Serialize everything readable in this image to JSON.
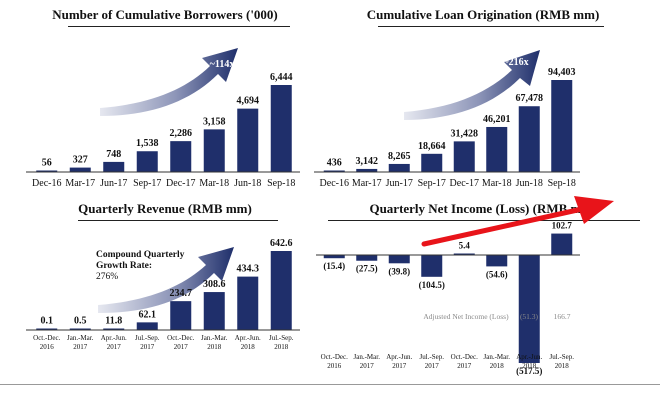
{
  "colors": {
    "bar": "#1f2f6b",
    "arrow_light": "#e6e8f0",
    "arrow_dark": "#1f2f6b",
    "red_arrow": "#e8141a",
    "muted_text": "#8a8a8a"
  },
  "chart_data": [
    {
      "id": "borrowers",
      "type": "bar",
      "title": "Number of Cumulative Borrowers ('000)",
      "categories": [
        "Dec-16",
        "Mar-17",
        "Jun-17",
        "Sep-17",
        "Dec-17",
        "Mar-18",
        "Jun-18",
        "Sep-18"
      ],
      "values": [
        56,
        327,
        748,
        1538,
        2286,
        3158,
        4694,
        6444
      ],
      "value_labels": [
        "56",
        "327",
        "748",
        "1,538",
        "2,286",
        "3,158",
        "4,694",
        "6,444"
      ],
      "ylim": [
        0,
        6444
      ],
      "arrow_label": "~114x"
    },
    {
      "id": "loans",
      "type": "bar",
      "title": "Cumulative Loan Origination (RMB mm)",
      "categories": [
        "Dec-16",
        "Mar-17",
        "Jun-17",
        "Sep-17",
        "Dec-17",
        "Mar-18",
        "Jun-18",
        "Sep-18"
      ],
      "values": [
        436,
        3142,
        8265,
        18664,
        31428,
        46201,
        67478,
        94403
      ],
      "value_labels": [
        "436",
        "3,142",
        "8,265",
        "18,664",
        "31,428",
        "46,201",
        "67,478",
        "94,403"
      ],
      "ylim": [
        0,
        94403
      ],
      "arrow_label": "~216x"
    },
    {
      "id": "revenue",
      "type": "bar",
      "title": "Quarterly Revenue (RMB mm)",
      "categories": [
        [
          "Oct.-Dec.",
          "2016"
        ],
        [
          "Jan.-Mar.",
          "2017"
        ],
        [
          "Apr.-Jun.",
          "2017"
        ],
        [
          "Jul.-Sep.",
          "2017"
        ],
        [
          "Oct.-Dec.",
          "2017"
        ],
        [
          "Jan.-Mar.",
          "2018"
        ],
        [
          "Apr.-Jun.",
          "2018"
        ],
        [
          "Jul.-Sep.",
          "2018"
        ]
      ],
      "values": [
        0.1,
        0.5,
        11.8,
        62.1,
        234.7,
        308.6,
        434.3,
        642.6
      ],
      "value_labels": [
        "0.1",
        "0.5",
        "11.8",
        "62.1",
        "234.7",
        "308.6",
        "434.3",
        "642.6"
      ],
      "ylim": [
        0,
        642.6
      ],
      "annotation": [
        "Compound Quarterly",
        "Growth Rate:",
        "276%"
      ]
    },
    {
      "id": "net_income",
      "type": "bar",
      "title": "Quarterly Net Income (Loss) (RMB mm)",
      "categories": [
        [
          "Oct.-Dec.",
          "2016"
        ],
        [
          "Jan.-Mar.",
          "2017"
        ],
        [
          "Apr.-Jun.",
          "2017"
        ],
        [
          "Jul.-Sep.",
          "2017"
        ],
        [
          "Oct.-Dec.",
          "2017"
        ],
        [
          "Jan.-Mar.",
          "2018"
        ],
        [
          "Apr.-Jun.",
          "2018"
        ],
        [
          "Jul.-Sep.",
          "2018"
        ]
      ],
      "values": [
        -15.4,
        -27.5,
        -39.8,
        -104.5,
        5.4,
        -54.6,
        -517.5,
        102.7
      ],
      "value_labels": [
        "(15.4)",
        "(27.5)",
        "(39.8)",
        "(104.5)",
        "5.4",
        "(54.6)",
        "(517.5)",
        "102.7"
      ],
      "ylim": [
        -517.5,
        102.7
      ],
      "adjusted_label": "Adjusted Net Income (Loss)",
      "adjusted_values": [
        "(51.3)",
        "166.7"
      ]
    }
  ]
}
